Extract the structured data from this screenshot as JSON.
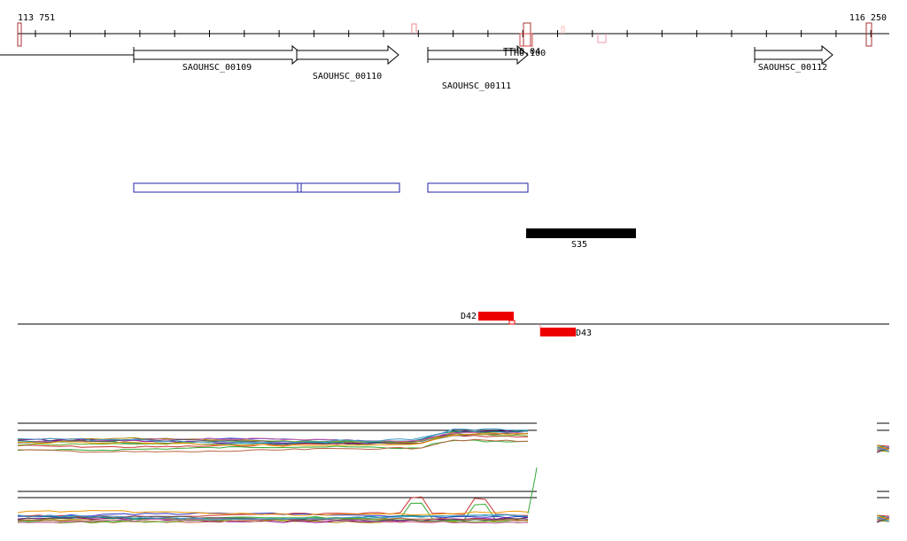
{
  "ruler": {
    "start": "113 751",
    "end": "116 250"
  },
  "genes": [
    {
      "label": "SAOUHSC_00109"
    },
    {
      "label": "SAOUHSC_00110"
    },
    {
      "label": "SAOUHSC_00111"
    },
    {
      "label": "SAOUHSC_00112"
    }
  ],
  "overlap_labels": [
    "TTH0.04",
    "TTH0.100"
  ],
  "segments": [
    {
      "label": "S35"
    },
    {
      "label": "D42"
    },
    {
      "label": "D43"
    }
  ]
}
